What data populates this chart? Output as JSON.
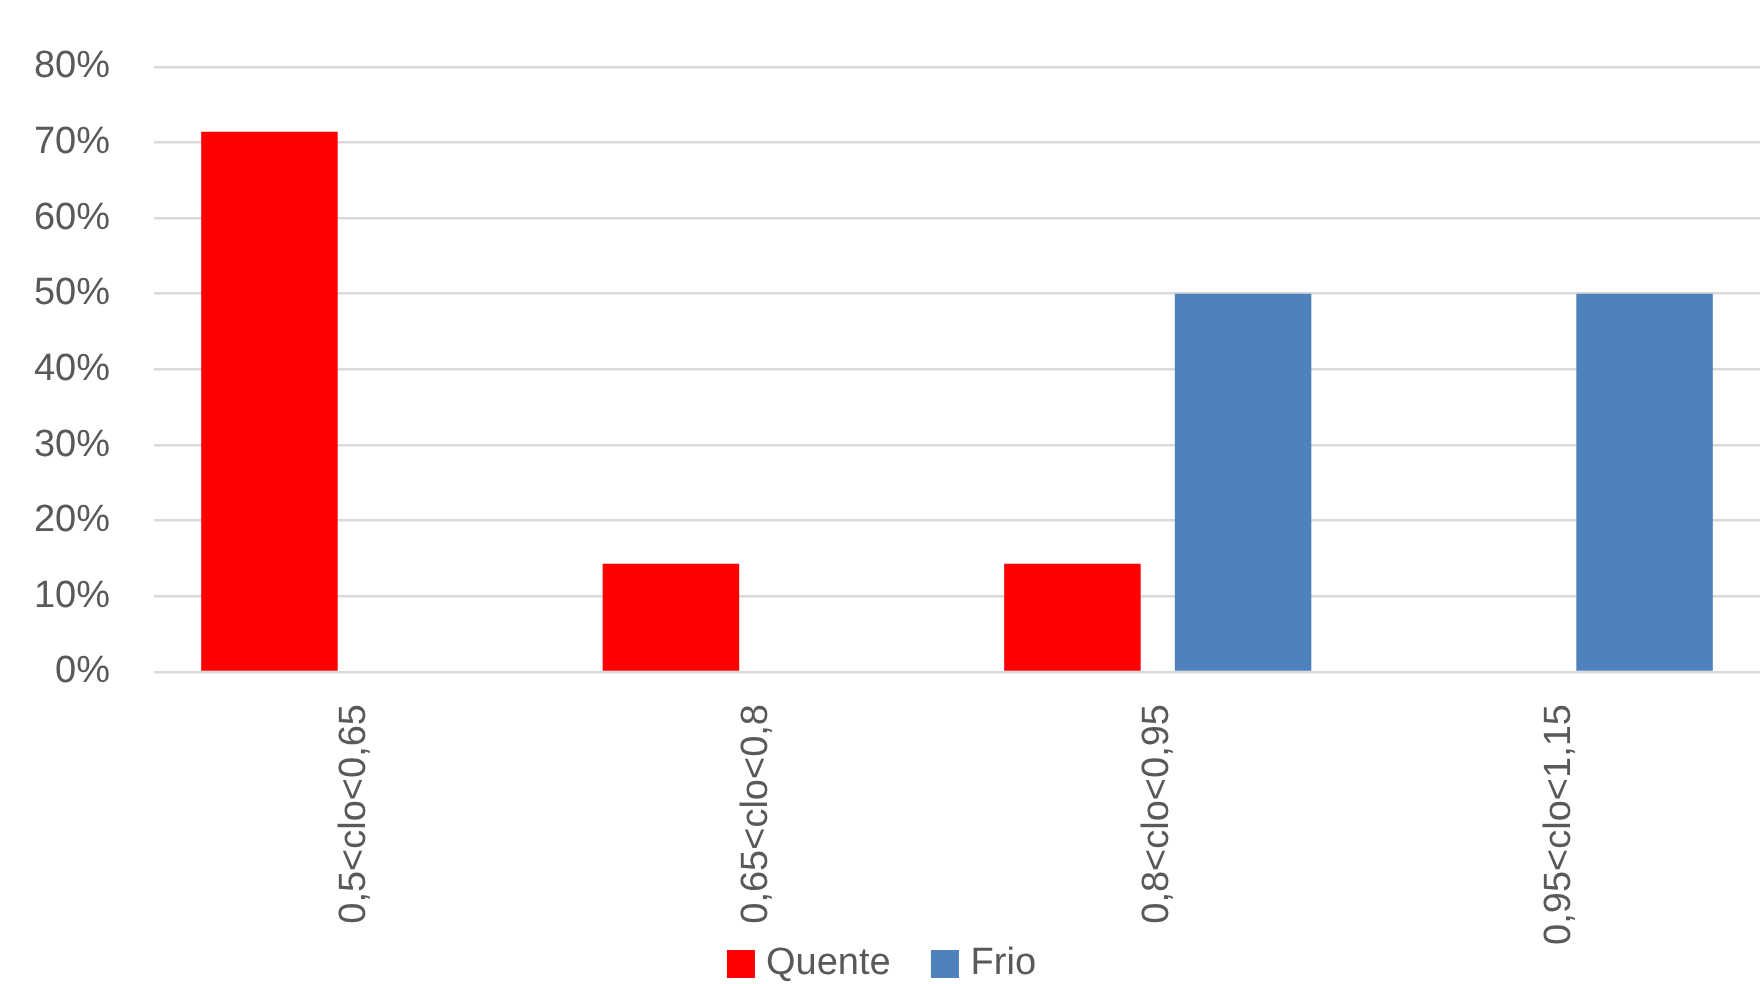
{
  "chart_data": {
    "type": "bar",
    "categories": [
      "0,5<clo<0,65",
      "0,65<clo<0,8",
      "0,8<clo<0,95",
      "0,95<clo<1,15"
    ],
    "series": [
      {
        "name": "Quente",
        "color": "#ff0000",
        "values": [
          71.4,
          14.3,
          14.3,
          0
        ]
      },
      {
        "name": "Frio",
        "color": "#4f81bd",
        "values": [
          0,
          0,
          50,
          50
        ]
      }
    ],
    "ylim": [
      0,
      80
    ],
    "yticks": [
      {
        "value": 0,
        "label": "0%"
      },
      {
        "value": 10,
        "label": "10%"
      },
      {
        "value": 20,
        "label": "20%"
      },
      {
        "value": 30,
        "label": "30%"
      },
      {
        "value": 40,
        "label": "40%"
      },
      {
        "value": 50,
        "label": "50%"
      },
      {
        "value": 60,
        "label": "60%"
      },
      {
        "value": 70,
        "label": "70%"
      },
      {
        "value": 80,
        "label": "80%"
      }
    ],
    "grid": "y",
    "legend": "bottom"
  }
}
